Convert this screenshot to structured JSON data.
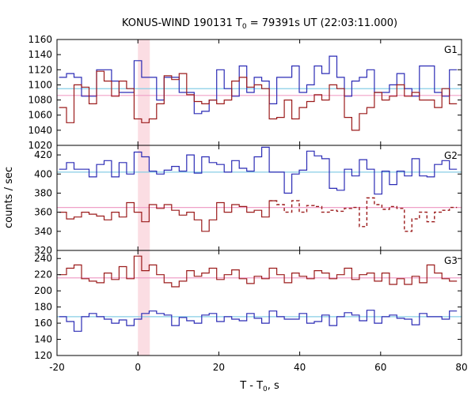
{
  "chart_data": {
    "type": "line",
    "title": "KONUS-WIND 190131 T",
    "title_sub": "0",
    "title_rest": " = 79391s UT (22:03:11.000)",
    "xlabel": "T - T",
    "xlabel_sub": "0",
    "xlabel_rest": ", s",
    "ylabel": "counts / sec",
    "xlim": [
      -20,
      80
    ],
    "xticks": [
      -20,
      0,
      20,
      40,
      60,
      80
    ],
    "highlight_band": [
      0,
      2.944
    ],
    "colors": {
      "blue": "#2b2bb5",
      "red": "#9b1b1b",
      "blue_bg": "#87cee6",
      "red_bg": "#f0a0c8",
      "band": "#fbdde3"
    },
    "panels": [
      {
        "label": "G1",
        "ylim": [
          1020,
          1160
        ],
        "yticks": [
          1020,
          1040,
          1060,
          1080,
          1100,
          1120,
          1140,
          1160
        ],
        "background": {
          "blue": 1095,
          "red": 1086
        },
        "series": [
          {
            "name": "",
            "color": "blue",
            "dashed_from": null,
            "values": [
              1110,
              1115,
              1110,
              1085,
              1085,
              1120,
              1120,
              1105,
              1090,
              1090,
              1132,
              1110,
              1110,
              1080,
              1110,
              1110,
              1090,
              1090,
              1062,
              1065,
              1080,
              1120,
              1095,
              1085,
              1125,
              1090,
              1110,
              1105,
              1075,
              1110,
              1110,
              1125,
              1090,
              1100,
              1125,
              1115,
              1138,
              1110,
              1085,
              1105,
              1110,
              1120,
              1090,
              1090,
              1100,
              1115,
              1095,
              1085,
              1125,
              1125,
              1090,
              1085,
              1120
            ]
          },
          {
            "name": "",
            "color": "red",
            "dashed_from": null,
            "values": [
              1070,
              1050,
              1100,
              1097,
              1075,
              1118,
              1105,
              1085,
              1105,
              1095,
              1055,
              1050,
              1055,
              1075,
              1112,
              1107,
              1115,
              1087,
              1078,
              1075,
              1080,
              1075,
              1080,
              1105,
              1110,
              1097,
              1100,
              1095,
              1055,
              1057,
              1080,
              1055,
              1070,
              1078,
              1087,
              1080,
              1100,
              1095,
              1057,
              1040,
              1062,
              1070,
              1090,
              1080,
              1085,
              1100,
              1085,
              1090,
              1080,
              1080,
              1070,
              1095,
              1075
            ]
          }
        ]
      },
      {
        "label": "G2",
        "ylim": [
          320,
          430
        ],
        "yticks": [
          320,
          340,
          360,
          380,
          400,
          420
        ],
        "background": {
          "blue": 402,
          "red": 365
        },
        "series": [
          {
            "name": "",
            "color": "blue",
            "dashed_from": null,
            "values": [
              405,
              412,
              405,
              405,
              397,
              410,
              414,
              397,
              412,
              400,
              423,
              418,
              403,
              400,
              404,
              408,
              403,
              420,
              401,
              418,
              412,
              410,
              402,
              414,
              406,
              403,
              418,
              428,
              402,
              402,
              380,
              400,
              404,
              424,
              419,
              416,
              385,
              383,
              405,
              398,
              415,
              405,
              379,
              403,
              389,
              403,
              398,
              416,
              398,
              397,
              410,
              414,
              405
            ]
          },
          {
            "name": "",
            "color": "red",
            "dashed_from": 29,
            "values": [
              360,
              353,
              355,
              360,
              358,
              356,
              352,
              360,
              355,
              370,
              360,
              350,
              368,
              364,
              368,
              362,
              357,
              360,
              352,
              340,
              352,
              370,
              360,
              368,
              366,
              360,
              362,
              355,
              372,
              368,
              360,
              372,
              360,
              367,
              366,
              360,
              362,
              361,
              364,
              365,
              345,
              375,
              368,
              363,
              366,
              364,
              340,
              353,
              360,
              350,
              360,
              362,
              365
            ]
          }
        ]
      },
      {
        "label": "G3",
        "ylim": [
          120,
          250
        ],
        "yticks": [
          120,
          140,
          160,
          180,
          200,
          220,
          240
        ],
        "background": {
          "blue": 168,
          "red": 216
        },
        "series": [
          {
            "name": "",
            "color": "blue",
            "dashed_from": null,
            "values": [
              168,
              162,
              150,
              168,
              172,
              168,
              165,
              160,
              164,
              157,
              165,
              172,
              175,
              172,
              170,
              157,
              167,
              163,
              160,
              170,
              172,
              162,
              168,
              165,
              163,
              172,
              166,
              160,
              175,
              168,
              165,
              165,
              172,
              160,
              162,
              170,
              157,
              168,
              173,
              170,
              163,
              176,
              160,
              168,
              170,
              166,
              165,
              158,
              172,
              168,
              168,
              165,
              175
            ]
          },
          {
            "name": "",
            "color": "red",
            "dashed_from": null,
            "values": [
              220,
              228,
              232,
              215,
              212,
              210,
              222,
              214,
              230,
              215,
              243,
              225,
              232,
              220,
              210,
              205,
              212,
              225,
              218,
              222,
              228,
              214,
              220,
              226,
              215,
              209,
              218,
              215,
              228,
              220,
              210,
              222,
              218,
              215,
              225,
              222,
              215,
              220,
              228,
              214,
              220,
              222,
              212,
              222,
              208,
              215,
              208,
              218,
              210,
              232,
              222,
              215,
              212
            ]
          }
        ]
      }
    ]
  }
}
